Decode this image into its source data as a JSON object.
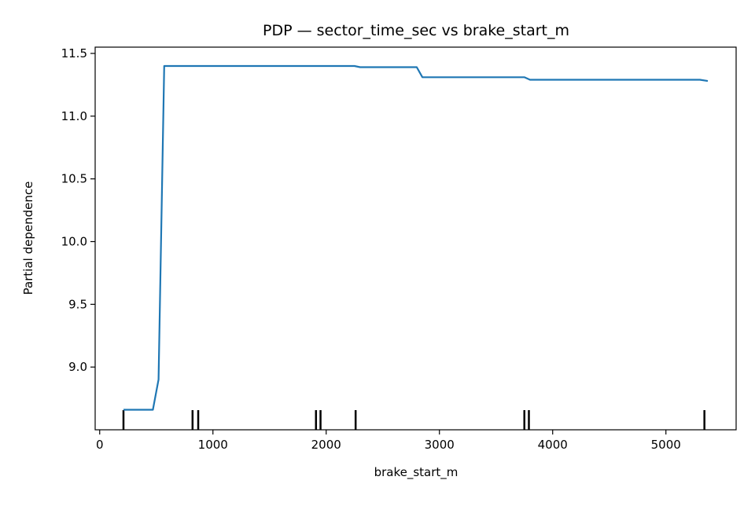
{
  "chart_data": {
    "type": "line",
    "title": "PDP — sector_time_sec vs brake_start_m",
    "xlabel": "brake_start_m",
    "ylabel": "Partial dependence",
    "xlim": [
      -40,
      5620
    ],
    "ylim": [
      8.5,
      11.55
    ],
    "xticks": [
      0,
      1000,
      2000,
      3000,
      4000,
      5000
    ],
    "xtick_labels": [
      "0",
      "1000",
      "2000",
      "3000",
      "4000",
      "5000"
    ],
    "yticks": [
      9.0,
      9.5,
      10.0,
      10.5,
      11.0,
      11.5
    ],
    "ytick_labels": [
      "9.0",
      "9.5",
      "10.0",
      "10.5",
      "11.0",
      "11.5"
    ],
    "grid": false,
    "line_color": "#1f77b4",
    "rug_color": "#000000",
    "series": [
      {
        "x": [
          210,
          300,
          400,
          470,
          520,
          570,
          700,
          900,
          1100,
          1350,
          1400,
          1600,
          1900,
          2000,
          2250,
          2300,
          2550,
          2800,
          2850,
          3100,
          3500,
          3750,
          3800,
          4000,
          4500,
          5000,
          5300,
          5370
        ],
        "values": [
          8.66,
          8.66,
          8.66,
          8.66,
          8.9,
          11.4,
          11.4,
          11.4,
          11.4,
          11.4,
          11.4,
          11.4,
          11.4,
          11.4,
          11.4,
          11.39,
          11.39,
          11.39,
          11.31,
          11.31,
          11.31,
          11.31,
          11.29,
          11.29,
          11.29,
          11.29,
          11.29,
          11.28
        ]
      }
    ],
    "rug_x": [
      210,
      820,
      870,
      1910,
      1950,
      2260,
      3750,
      3790,
      5340
    ]
  }
}
